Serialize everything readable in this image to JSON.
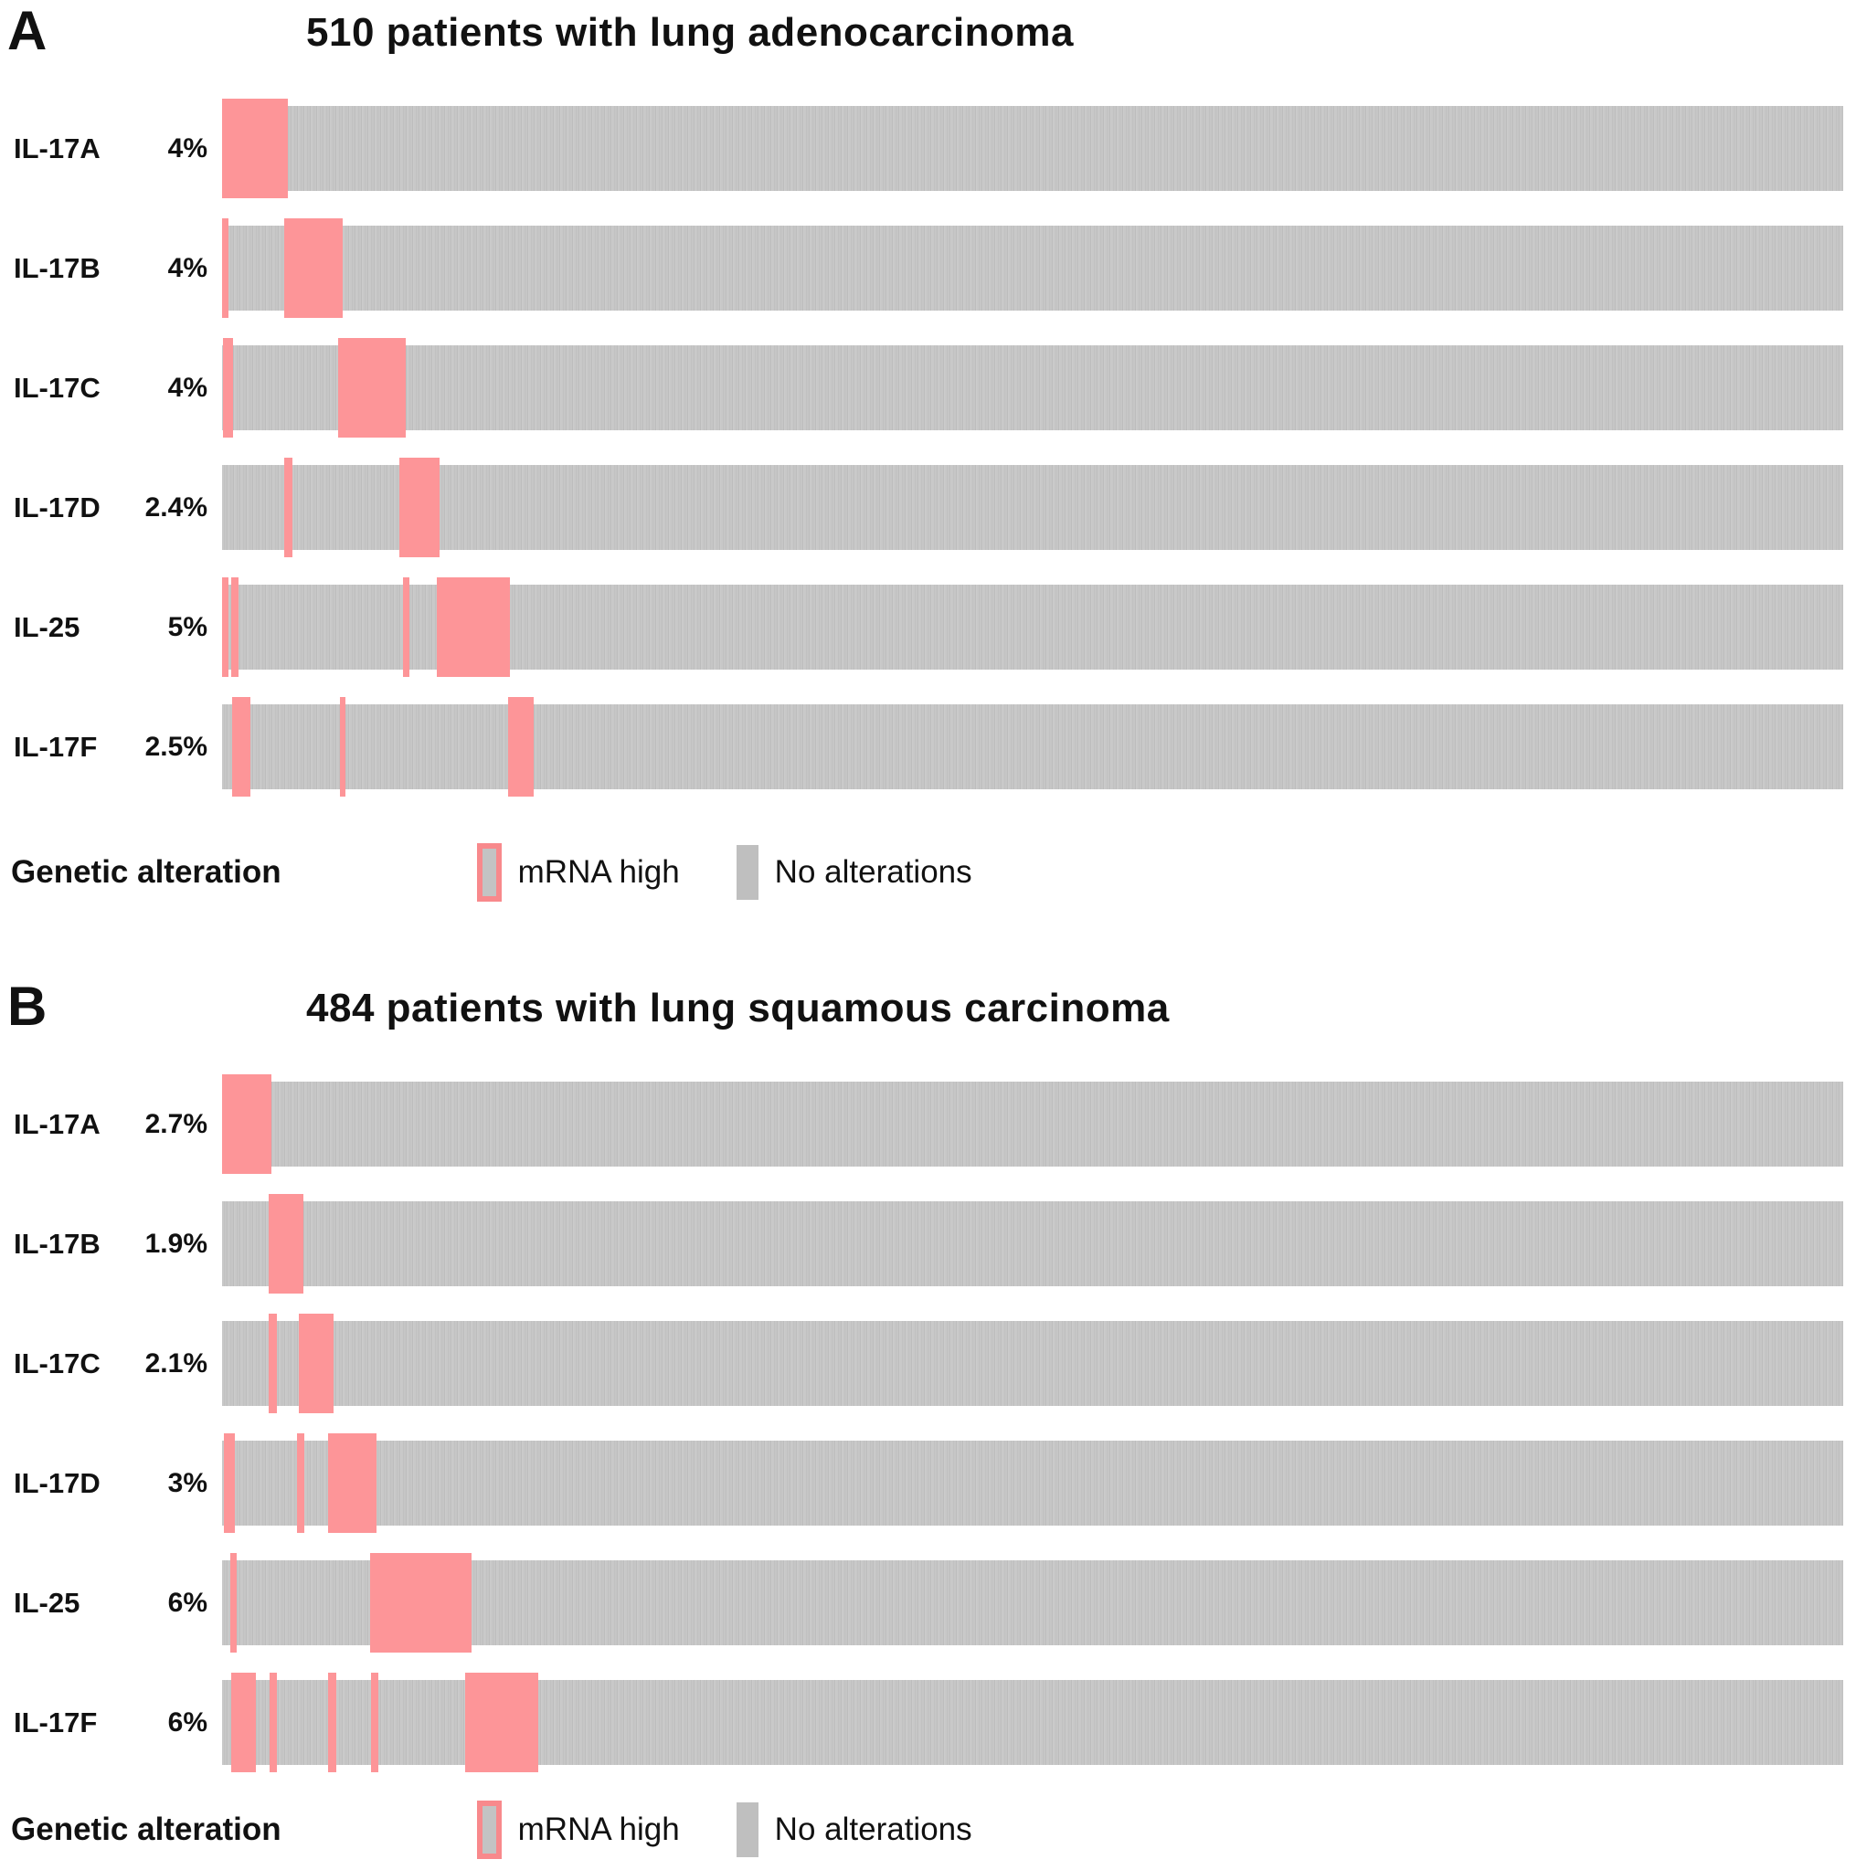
{
  "figure": {
    "panels": [
      {
        "letter": "A",
        "title": "510 patients with lung adenocarcinoma",
        "rows": [
          {
            "gene": "IL-17A",
            "percent": "4%",
            "segments": [
              [
                0,
                4.06
              ]
            ]
          },
          {
            "gene": "IL-17B",
            "percent": "4%",
            "segments": [
              [
                0,
                0.4
              ],
              [
                3.84,
                3.61
              ]
            ]
          },
          {
            "gene": "IL-17C",
            "percent": "4%",
            "segments": [
              [
                0.06,
                0.62
              ],
              [
                7.17,
                4.18
              ]
            ]
          },
          {
            "gene": "IL-17D",
            "percent": "2.4%",
            "segments": [
              [
                3.84,
                0.51
              ],
              [
                10.95,
                2.48
              ]
            ]
          },
          {
            "gene": "IL-25",
            "percent": "5%",
            "segments": [
              [
                0,
                0.4
              ],
              [
                0.56,
                0.45
              ],
              [
                11.17,
                0.4
              ],
              [
                13.26,
                4.51
              ]
            ]
          },
          {
            "gene": "IL-17F",
            "percent": "2.5%",
            "segments": [
              [
                0.62,
                1.13
              ],
              [
                7.28,
                0.34
              ],
              [
                17.66,
                1.58
              ]
            ]
          }
        ],
        "legend": {
          "title": "Genetic alteration",
          "mrna_label": "mRNA high",
          "none_label": "No alterations"
        }
      },
      {
        "letter": "B",
        "title": "484 patients with lung squamous carcinoma",
        "rows": [
          {
            "gene": "IL-17A",
            "percent": "2.7%",
            "segments": [
              [
                0,
                3.06
              ]
            ]
          },
          {
            "gene": "IL-17B",
            "percent": "1.9%",
            "segments": [
              [
                2.89,
                2.15
              ]
            ]
          },
          {
            "gene": "IL-17C",
            "percent": "2.1%",
            "segments": [
              [
                2.89,
                0.51
              ],
              [
                4.71,
                2.15
              ]
            ]
          },
          {
            "gene": "IL-17D",
            "percent": "3%",
            "segments": [
              [
                0.11,
                0.68
              ],
              [
                4.65,
                0.4
              ],
              [
                6.52,
                3.0
              ]
            ]
          },
          {
            "gene": "IL-25",
            "percent": "6%",
            "segments": [
              [
                0.51,
                0.4
              ],
              [
                9.13,
                6.24
              ]
            ]
          },
          {
            "gene": "IL-17F",
            "percent": "6%",
            "segments": [
              [
                0.57,
                1.53
              ],
              [
                2.95,
                0.45
              ],
              [
                6.52,
                0.51
              ],
              [
                9.18,
                0.45
              ],
              [
                15.02,
                4.48
              ]
            ]
          }
        ],
        "legend": {
          "title": "Genetic alteration",
          "mrna_label": "mRNA high",
          "none_label": "No alterations"
        }
      }
    ],
    "colors": {
      "mrna_high": "#fd9598",
      "mrna_high_swatch_border": "#f8898c",
      "no_alteration": "#c6c6c6"
    }
  },
  "chart_data": [
    {
      "type": "heatmap",
      "subtype": "oncoprint",
      "title": "510 patients with lung adenocarcinoma",
      "panel": "A",
      "n_patients": 510,
      "categories": [
        "IL-17A",
        "IL-17B",
        "IL-17C",
        "IL-17D",
        "IL-25",
        "IL-17F"
      ],
      "alteration_percent": [
        4,
        4,
        4,
        2.4,
        5,
        2.5
      ],
      "alteration_type": "mRNA high",
      "legend_entries": [
        "mRNA high",
        "No alterations"
      ],
      "legend_position": "bottom",
      "track_segments_pct": {
        "IL-17A": [
          [
            0,
            4.06
          ]
        ],
        "IL-17B": [
          [
            0,
            0.4
          ],
          [
            3.84,
            3.61
          ]
        ],
        "IL-17C": [
          [
            0.06,
            0.62
          ],
          [
            7.17,
            4.18
          ]
        ],
        "IL-17D": [
          [
            3.84,
            0.51
          ],
          [
            10.95,
            2.48
          ]
        ],
        "IL-25": [
          [
            0,
            0.4
          ],
          [
            0.56,
            0.45
          ],
          [
            11.17,
            0.4
          ],
          [
            13.26,
            4.51
          ]
        ],
        "IL-17F": [
          [
            0.62,
            1.13
          ],
          [
            7.28,
            0.34
          ],
          [
            17.66,
            1.58
          ]
        ]
      }
    },
    {
      "type": "heatmap",
      "subtype": "oncoprint",
      "title": "484 patients with lung squamous carcinoma",
      "panel": "B",
      "n_patients": 484,
      "categories": [
        "IL-17A",
        "IL-17B",
        "IL-17C",
        "IL-17D",
        "IL-25",
        "IL-17F"
      ],
      "alteration_percent": [
        2.7,
        1.9,
        2.1,
        3,
        6,
        6
      ],
      "alteration_type": "mRNA high",
      "legend_entries": [
        "mRNA high",
        "No alterations"
      ],
      "legend_position": "bottom",
      "track_segments_pct": {
        "IL-17A": [
          [
            0,
            3.06
          ]
        ],
        "IL-17B": [
          [
            2.89,
            2.15
          ]
        ],
        "IL-17C": [
          [
            2.89,
            0.51
          ],
          [
            4.71,
            2.15
          ]
        ],
        "IL-17D": [
          [
            0.11,
            0.68
          ],
          [
            4.65,
            0.4
          ],
          [
            6.52,
            3.0
          ]
        ],
        "IL-25": [
          [
            0.51,
            0.4
          ],
          [
            9.13,
            6.24
          ]
        ],
        "IL-17F": [
          [
            0.57,
            1.53
          ],
          [
            2.95,
            0.45
          ],
          [
            6.52,
            0.51
          ],
          [
            9.18,
            0.45
          ],
          [
            15.02,
            4.48
          ]
        ]
      }
    }
  ]
}
